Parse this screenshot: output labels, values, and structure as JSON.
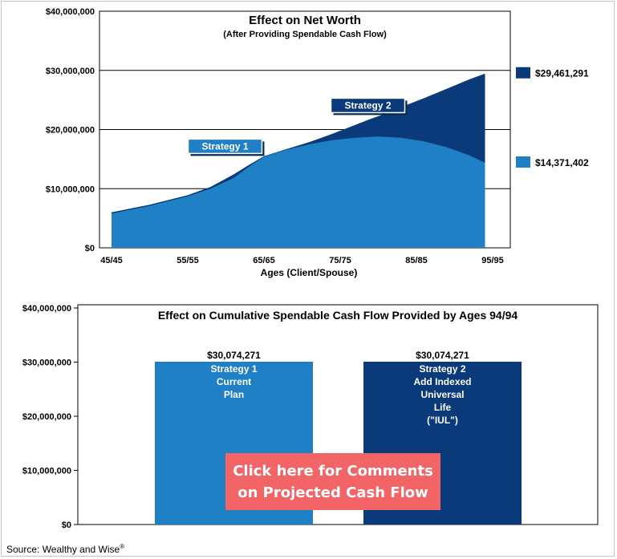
{
  "colors": {
    "strategy1": "#1f80c6",
    "strategy2": "#0a3a7a",
    "cta_bg": "#f26466",
    "cta_text": "#ffffff",
    "grid": "#000000"
  },
  "chart_data": [
    {
      "type": "area",
      "title": "Effect on Net Worth",
      "subtitle": "(After Providing Spendable Cash Flow)",
      "xlabel": "Ages (Client/Spouse)",
      "ylabel": "",
      "x_tick_labels": [
        "45/45",
        "55/55",
        "65/65",
        "75/75",
        "85/85",
        "95/95"
      ],
      "x": [
        45,
        50,
        55,
        58,
        61,
        63,
        65,
        68,
        71,
        74,
        77,
        80,
        83,
        86,
        89,
        92,
        94
      ],
      "y_ticks": [
        0,
        10000000,
        20000000,
        30000000,
        40000000
      ],
      "y_tick_labels": [
        "$0",
        "$10,000,000",
        "$20,000,000",
        "$30,000,000",
        "$40,000,000"
      ],
      "ylim": [
        0,
        40000000
      ],
      "grid": true,
      "series": [
        {
          "name": "Strategy 2",
          "values": [
            6000000,
            7300000,
            8900000,
            10300000,
            12400000,
            14000000,
            15500000,
            16700000,
            17900000,
            19300000,
            20800000,
            22300000,
            23800000,
            25300000,
            26900000,
            28500000,
            29461291
          ]
        },
        {
          "name": "Strategy 1",
          "values": [
            5800000,
            7100000,
            8700000,
            10000000,
            11800000,
            13700000,
            15400000,
            16600000,
            17500000,
            18200000,
            18600000,
            18800000,
            18600000,
            18000000,
            17000000,
            15600000,
            14371402
          ]
        }
      ],
      "end_values": [
        {
          "label": "$29,461,291",
          "series": "Strategy 2"
        },
        {
          "label": "$14,371,402",
          "series": "Strategy 1"
        }
      ],
      "callouts": [
        {
          "label": "Strategy 1",
          "x": 62,
          "y": 15000000
        },
        {
          "label": "Strategy 2",
          "x": 78,
          "y": 21500000
        }
      ]
    },
    {
      "type": "bar",
      "title": "Effect on Cumulative Spendable Cash Flow Provided by Ages 94/94",
      "categories": [
        "Strategy 1",
        "Strategy 2"
      ],
      "values": [
        30074271,
        30074271
      ],
      "value_labels": [
        "$30,074,271",
        "$30,074,271"
      ],
      "bar_text": [
        [
          "Strategy 1",
          "Current",
          "Plan"
        ],
        [
          "Strategy 2",
          "Add Indexed",
          "Universal",
          "Life",
          "(\"IUL\")"
        ]
      ],
      "y_ticks": [
        0,
        10000000,
        20000000,
        30000000,
        40000000
      ],
      "y_tick_labels": [
        "$0",
        "$10,000,000",
        "$20,000,000",
        "$30,000,000",
        "$40,000,000"
      ],
      "ylim": [
        0,
        40000000
      ],
      "grid": false
    }
  ],
  "cta": {
    "line1": "Click here for Comments",
    "line2": "on Projected Cash Flow"
  },
  "source": {
    "text": "Source: Wealthy and Wise",
    "mark": "®"
  }
}
